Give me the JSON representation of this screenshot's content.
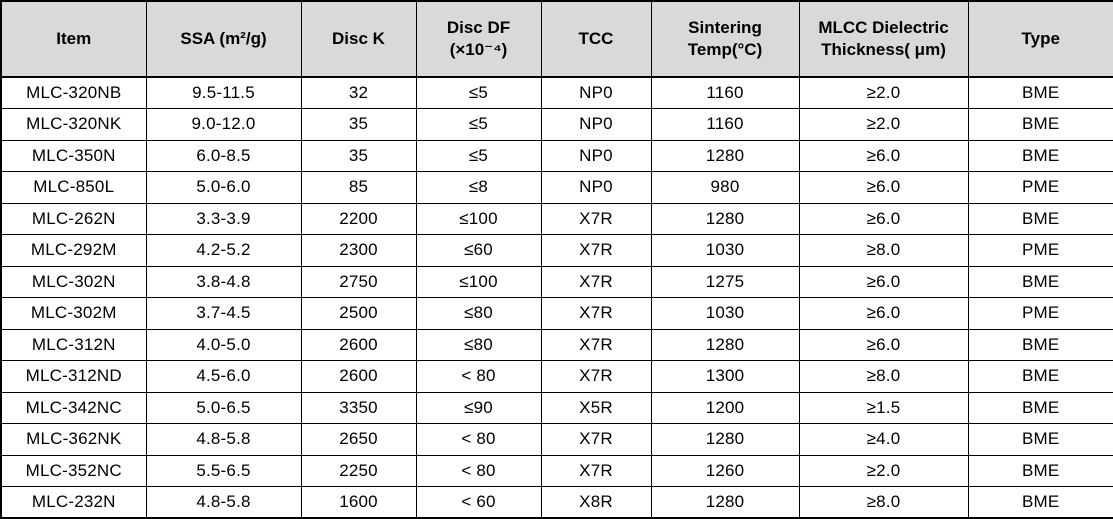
{
  "colors": {
    "header_background": "#d9d9d9",
    "body_background": "#ffffff",
    "border": "#000000",
    "text": "#000000"
  },
  "chart_data": {
    "type": "table",
    "columns": [
      "Item",
      "SSA (m²/g)",
      "Disc K",
      "Disc DF\n(×10⁻⁴)",
      "TCC",
      "Sintering\nTemp(°C)",
      "MLCC Dielectric\nThickness( μm)",
      "Type"
    ],
    "rows": [
      [
        "MLC-320NB",
        "9.5-11.5",
        "32",
        "≤5",
        "NP0",
        "1160",
        "≥2.0",
        "BME"
      ],
      [
        "MLC-320NK",
        "9.0-12.0",
        "35",
        "≤5",
        "NP0",
        "1160",
        "≥2.0",
        "BME"
      ],
      [
        "MLC-350N",
        "6.0-8.5",
        "35",
        "≤5",
        "NP0",
        "1280",
        "≥6.0",
        "BME"
      ],
      [
        "MLC-850L",
        "5.0-6.0",
        "85",
        "≤8",
        "NP0",
        "980",
        "≥6.0",
        "PME"
      ],
      [
        "MLC-262N",
        "3.3-3.9",
        "2200",
        "≤100",
        "X7R",
        "1280",
        "≥6.0",
        "BME"
      ],
      [
        "MLC-292M",
        "4.2-5.2",
        "2300",
        "≤60",
        "X7R",
        "1030",
        "≥8.0",
        "PME"
      ],
      [
        "MLC-302N",
        "3.8-4.8",
        "2750",
        "≤100",
        "X7R",
        "1275",
        "≥6.0",
        "BME"
      ],
      [
        "MLC-302M",
        "3.7-4.5",
        "2500",
        "≤80",
        "X7R",
        "1030",
        "≥6.0",
        "PME"
      ],
      [
        "MLC-312N",
        "4.0-5.0",
        "2600",
        "≤80",
        "X7R",
        "1280",
        "≥6.0",
        "BME"
      ],
      [
        "MLC-312ND",
        "4.5-6.0",
        "2600",
        "< 80",
        "X7R",
        "1300",
        "≥8.0",
        "BME"
      ],
      [
        "MLC-342NC",
        "5.0-6.5",
        "3350",
        "≤90",
        "X5R",
        "1200",
        "≥1.5",
        "BME"
      ],
      [
        "MLC-362NK",
        "4.8-5.8",
        "2650",
        "< 80",
        "X7R",
        "1280",
        "≥4.0",
        "BME"
      ],
      [
        "MLC-352NC",
        "5.5-6.5",
        "2250",
        "< 80",
        "X7R",
        "1260",
        "≥2.0",
        "BME"
      ],
      [
        "MLC-232N",
        "4.8-5.8",
        "1600",
        "< 60",
        "X8R",
        "1280",
        "≥8.0",
        "BME"
      ]
    ]
  }
}
